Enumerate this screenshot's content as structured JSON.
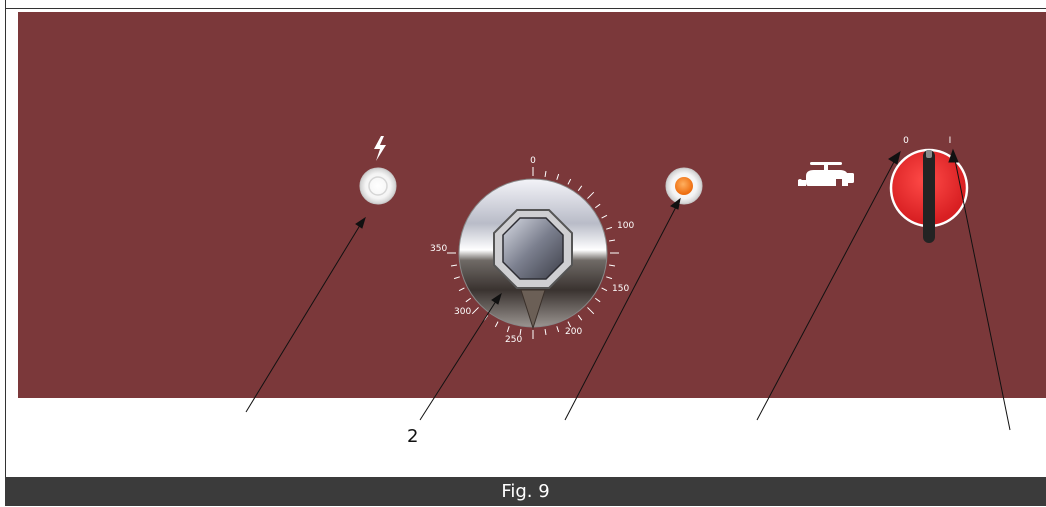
{
  "figure": {
    "caption": "Fig. 9",
    "callout_number": "2"
  },
  "colors": {
    "panel": "#7b383a",
    "indicator_orange": "#f07a1a",
    "switch_red": "#e8262a",
    "caption_bar": "#3b3b3b"
  },
  "thermostat_dial": {
    "scale_labels": [
      "0",
      "100",
      "150",
      "200",
      "250",
      "300",
      "350"
    ]
  },
  "water_switch": {
    "off_label": "0",
    "on_label": "I"
  },
  "icons": [
    "lightning-icon",
    "water-tap-icon"
  ]
}
